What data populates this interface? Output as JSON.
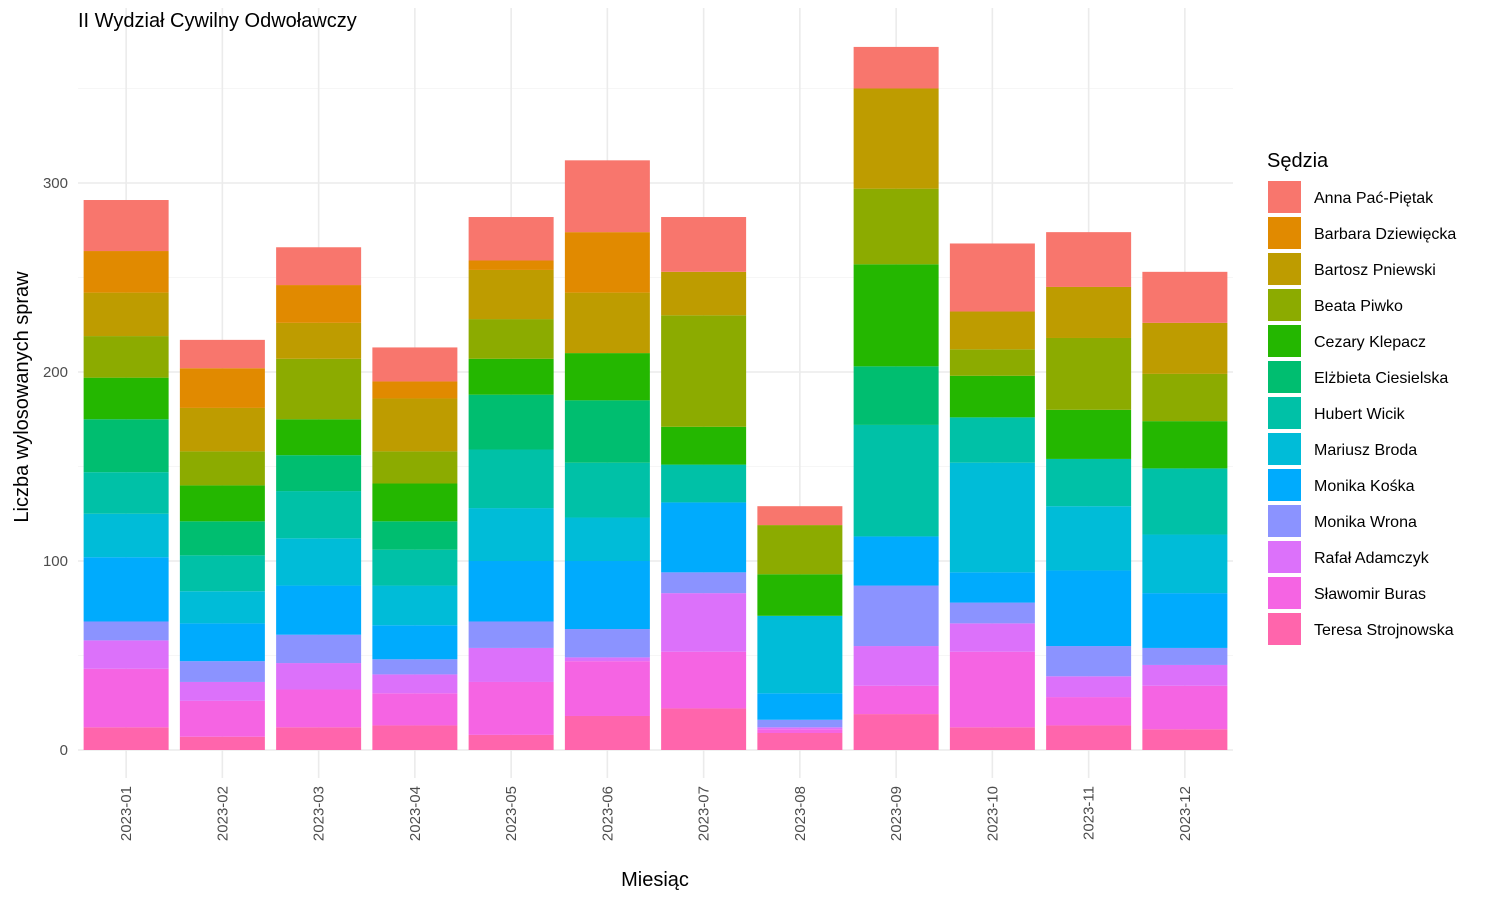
{
  "chart_data": {
    "type": "bar",
    "stacked": true,
    "title": "II Wydział Cywilny Odwoławczy",
    "xlabel": "Miesiąc",
    "ylabel": "Liczba wylosowanych spraw",
    "ylim": [
      0,
      390
    ],
    "yticks": [
      0,
      100,
      200,
      300
    ],
    "grid": true,
    "legend_title": "Sędzia",
    "legend_position": "right",
    "categories": [
      "2023-01",
      "2023-02",
      "2023-03",
      "2023-04",
      "2023-05",
      "2023-06",
      "2023-07",
      "2023-08",
      "2023-09",
      "2023-10",
      "2023-11",
      "2023-12"
    ],
    "series": [
      {
        "name": "Teresa Strojnowska",
        "color": "#FF65AC",
        "values": [
          12,
          7,
          12,
          13,
          8,
          18,
          22,
          9,
          19,
          12,
          13,
          11
        ]
      },
      {
        "name": "Sławomir Buras",
        "color": "#F564E3",
        "values": [
          31,
          19,
          20,
          17,
          28,
          29,
          30,
          2,
          15,
          40,
          15,
          23
        ]
      },
      {
        "name": "Rafał Adamczyk",
        "color": "#DC71FA",
        "values": [
          15,
          10,
          14,
          10,
          18,
          2,
          31,
          1,
          21,
          15,
          11,
          11
        ]
      },
      {
        "name": "Monika Wrona",
        "color": "#8B93FF",
        "values": [
          10,
          11,
          15,
          8,
          14,
          15,
          11,
          4,
          32,
          11,
          16,
          9
        ]
      },
      {
        "name": "Monika Kośka",
        "color": "#00ABFD",
        "values": [
          34,
          20,
          26,
          18,
          32,
          36,
          37,
          14,
          26,
          16,
          40,
          29
        ]
      },
      {
        "name": "Mariusz Broda",
        "color": "#00BCD8",
        "values": [
          23,
          17,
          25,
          21,
          28,
          23,
          0,
          41,
          0,
          58,
          34,
          31
        ]
      },
      {
        "name": "Hubert Wicik",
        "color": "#00C1A7",
        "values": [
          22,
          19,
          25,
          19,
          31,
          29,
          20,
          0,
          59,
          24,
          25,
          35
        ]
      },
      {
        "name": "Elżbieta Ciesielska",
        "color": "#00BE70",
        "values": [
          28,
          18,
          19,
          15,
          29,
          33,
          0,
          0,
          31,
          0,
          0,
          0
        ]
      },
      {
        "name": "Cezary Klepacz",
        "color": "#24B700",
        "values": [
          22,
          19,
          19,
          20,
          19,
          25,
          20,
          22,
          54,
          22,
          26,
          25
        ]
      },
      {
        "name": "Beata Piwko",
        "color": "#8CAB00",
        "values": [
          22,
          18,
          32,
          17,
          21,
          0,
          59,
          26,
          40,
          14,
          38,
          25
        ]
      },
      {
        "name": "Bartosz Pniewski",
        "color": "#BE9C00",
        "values": [
          23,
          23,
          19,
          28,
          26,
          32,
          23,
          0,
          53,
          20,
          27,
          27
        ]
      },
      {
        "name": "Barbara Dziewięcka",
        "color": "#E18A00",
        "values": [
          22,
          21,
          20,
          9,
          5,
          32,
          0,
          0,
          0,
          0,
          0,
          0
        ]
      },
      {
        "name": "Anna Pać-Piętak",
        "color": "#F8766D",
        "values": [
          27,
          15,
          20,
          18,
          23,
          38,
          29,
          10,
          22,
          36,
          29,
          27
        ]
      }
    ]
  }
}
